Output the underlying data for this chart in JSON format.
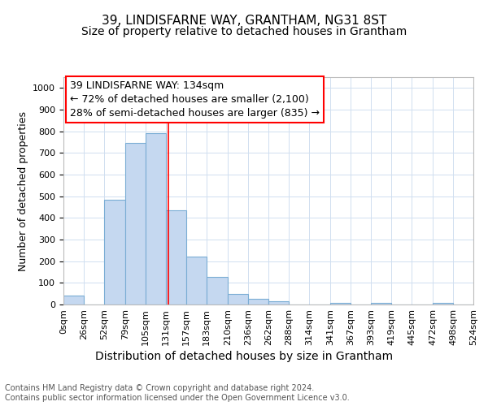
{
  "title": "39, LINDISFARNE WAY, GRANTHAM, NG31 8ST",
  "subtitle": "Size of property relative to detached houses in Grantham",
  "xlabel": "Distribution of detached houses by size in Grantham",
  "ylabel": "Number of detached properties",
  "bar_color": "#c5d8f0",
  "bar_edge_color": "#7aadd4",
  "background_color": "#ffffff",
  "grid_color": "#d0dff0",
  "vline_x": 134,
  "vline_color": "red",
  "annotation_text": "39 LINDISFARNE WAY: 134sqm\n← 72% of detached houses are smaller (2,100)\n28% of semi-detached houses are larger (835) →",
  "annotation_box_color": "red",
  "bin_edges": [
    0,
    26,
    52,
    79,
    105,
    131,
    157,
    183,
    210,
    236,
    262,
    288,
    314,
    341,
    367,
    393,
    419,
    445,
    472,
    498,
    524
  ],
  "bar_heights": [
    40,
    0,
    483,
    748,
    793,
    434,
    220,
    127,
    50,
    28,
    15,
    0,
    0,
    7,
    0,
    8,
    0,
    0,
    8,
    0
  ],
  "ylim": [
    0,
    1050
  ],
  "yticks": [
    0,
    100,
    200,
    300,
    400,
    500,
    600,
    700,
    800,
    900,
    1000
  ],
  "xtick_labels": [
    "0sqm",
    "26sqm",
    "52sqm",
    "79sqm",
    "105sqm",
    "131sqm",
    "157sqm",
    "183sqm",
    "210sqm",
    "236sqm",
    "262sqm",
    "288sqm",
    "314sqm",
    "341sqm",
    "367sqm",
    "393sqm",
    "419sqm",
    "445sqm",
    "472sqm",
    "498sqm",
    "524sqm"
  ],
  "footer_text": "Contains HM Land Registry data © Crown copyright and database right 2024.\nContains public sector information licensed under the Open Government Licence v3.0.",
  "title_fontsize": 11,
  "subtitle_fontsize": 10,
  "xlabel_fontsize": 10,
  "ylabel_fontsize": 9,
  "tick_fontsize": 8,
  "annotation_fontsize": 9,
  "footer_fontsize": 7
}
